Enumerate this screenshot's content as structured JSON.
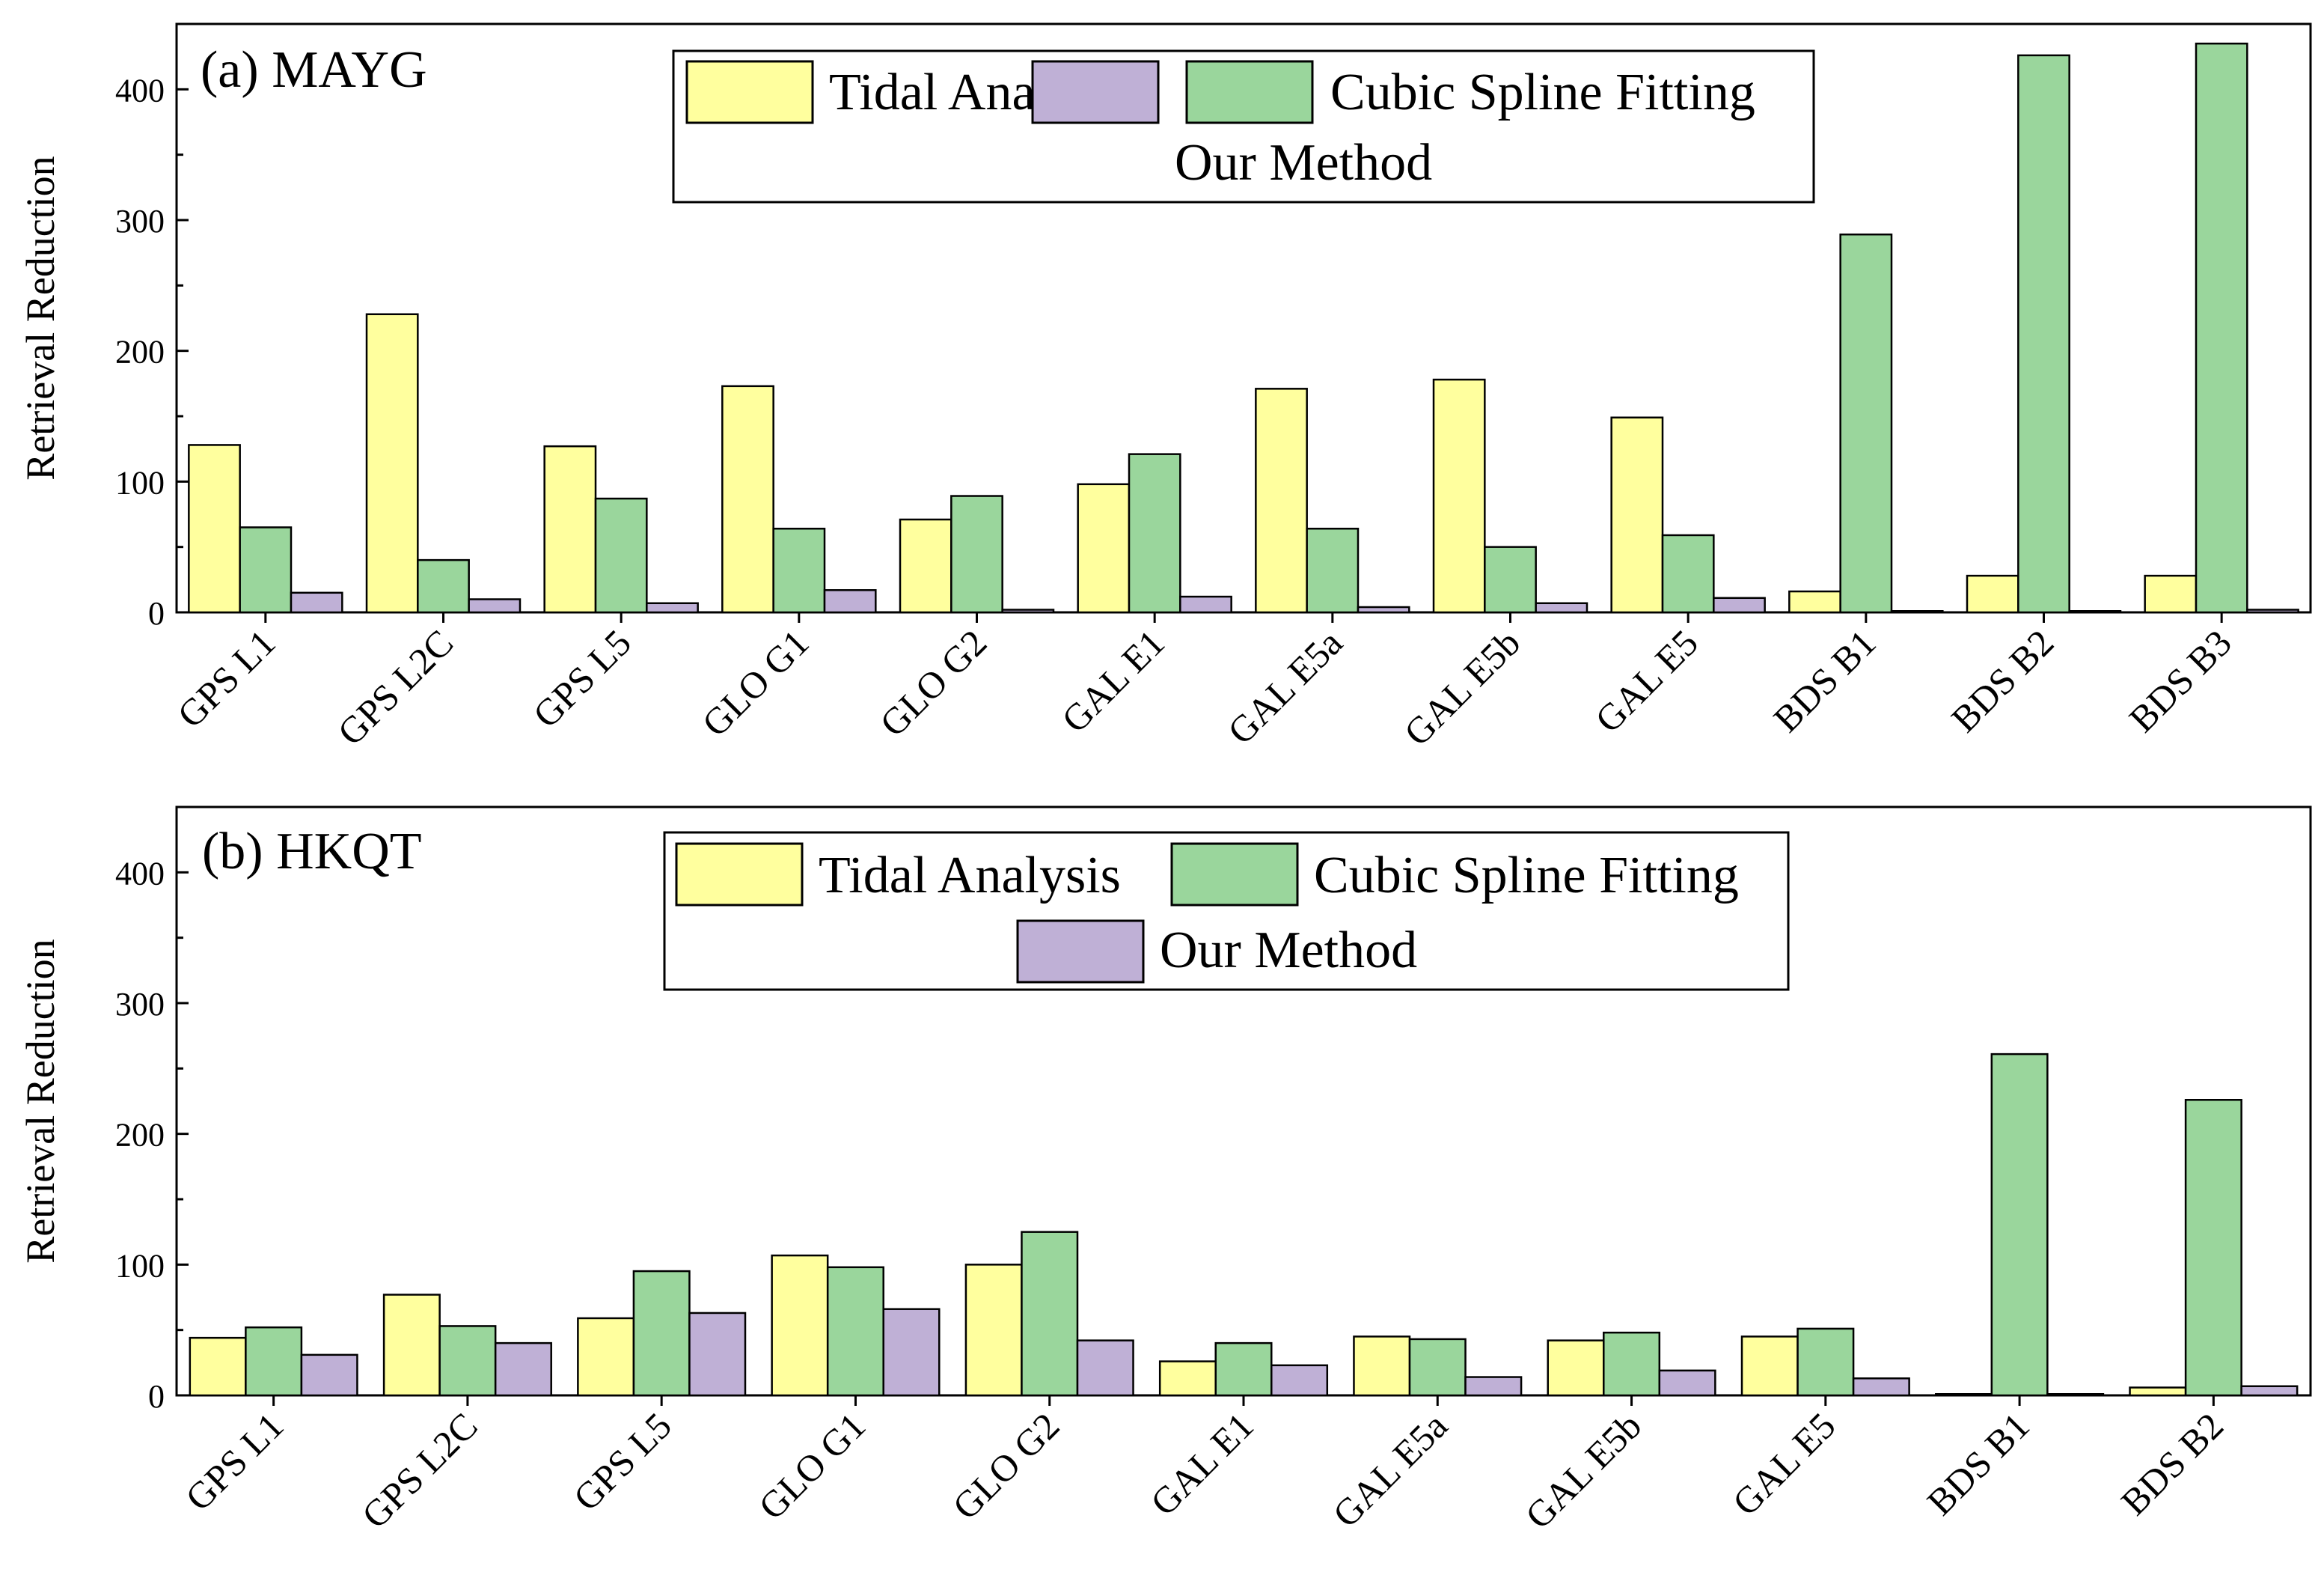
{
  "figure": {
    "ylabel": "Retrieval Reduction",
    "colors": {
      "tidal": "#ffff9e",
      "spline": "#9ad69c",
      "ours": "#bfb0d6",
      "stroke": "#000000"
    }
  },
  "chart_data": [
    {
      "type": "bar",
      "title": "(a) MAYG",
      "xlabel": "",
      "ylabel": "Retrieval Reduction",
      "ylim": [
        0,
        450
      ],
      "yticks": [
        0,
        100,
        200,
        300,
        400
      ],
      "legend": [
        "Tidal Analysis",
        "Cubic Spline Fitting",
        "Our Method"
      ],
      "categories": [
        "GPS L1",
        "GPS L2C",
        "GPS L5",
        "GLO G1",
        "GLO G2",
        "GAL E1",
        "GAL E5a",
        "GAL E5b",
        "GAL E5",
        "BDS B1",
        "BDS B2",
        "BDS B3"
      ],
      "series": [
        {
          "name": "Tidal Analysis",
          "values": [
            128,
            228,
            127,
            173,
            71,
            98,
            171,
            178,
            149,
            16,
            28,
            28
          ]
        },
        {
          "name": "Cubic Spline Fitting",
          "values": [
            65,
            40,
            87,
            64,
            89,
            121,
            64,
            50,
            59,
            289,
            426,
            435
          ]
        },
        {
          "name": "Our Method",
          "values": [
            15,
            10,
            7,
            17,
            2,
            12,
            4,
            7,
            11,
            1,
            1,
            2
          ]
        }
      ]
    },
    {
      "type": "bar",
      "title": "(b) HKQT",
      "xlabel": "",
      "ylabel": "Retrieval Reduction",
      "ylim": [
        0,
        450
      ],
      "yticks": [
        0,
        100,
        200,
        300,
        400
      ],
      "legend": [
        "Tidal Analysis",
        "Cubic Spline Fitting",
        "Our Method"
      ],
      "categories": [
        "GPS L1",
        "GPS L2C",
        "GPS L5",
        "GLO G1",
        "GLO G2",
        "GAL E1",
        "GAL E5a",
        "GAL E5b",
        "GAL E5",
        "BDS B1",
        "BDS B2"
      ],
      "series": [
        {
          "name": "Tidal Analysis",
          "values": [
            44,
            77,
            59,
            107,
            100,
            26,
            45,
            42,
            45,
            1,
            6
          ]
        },
        {
          "name": "Cubic Spline Fitting",
          "values": [
            52,
            53,
            95,
            98,
            125,
            40,
            43,
            48,
            51,
            261,
            226
          ]
        },
        {
          "name": "Our Method",
          "values": [
            31,
            40,
            63,
            66,
            42,
            23,
            14,
            19,
            13,
            1,
            7
          ]
        }
      ]
    }
  ]
}
